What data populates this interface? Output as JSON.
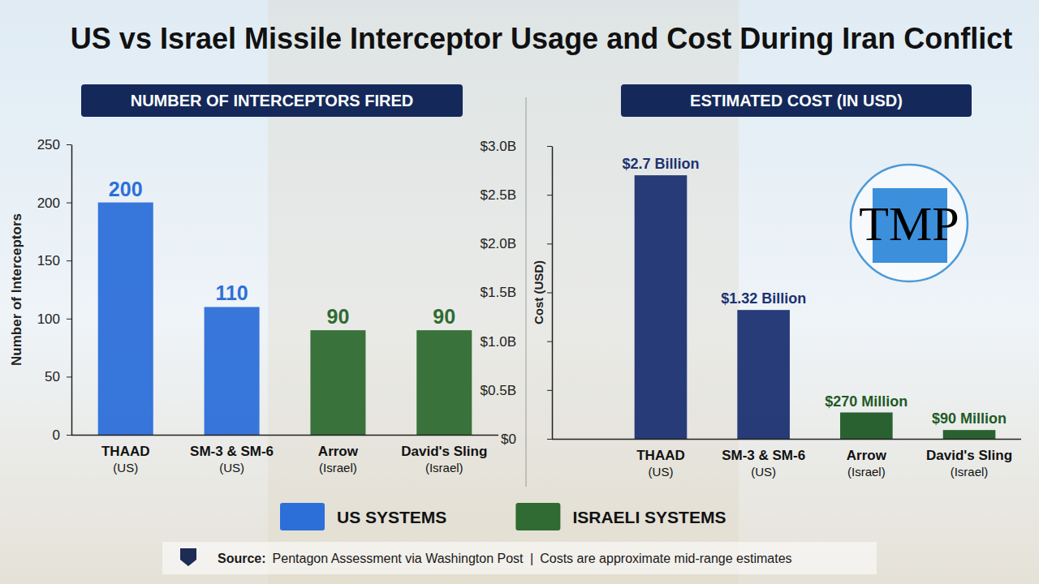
{
  "header": {
    "title": "US vs Israel Missile Interceptor Usage and Cost During Iran Conflict"
  },
  "chart_data": [
    {
      "type": "bar",
      "title": "NUMBER OF INTERCEPTORS FIRED",
      "y_label": "Number of Interceptors",
      "categories": [
        "THAAD (US)",
        "SM-3 & SM-6 (US)",
        "Arrow (Israel)",
        "David's Sling (Israel)"
      ],
      "series": [
        {
          "name": "US SYSTEMS",
          "color": "#2d6fd9",
          "values": [
            200,
            110,
            null,
            null
          ]
        },
        {
          "name": "ISRAELI SYSTEMS",
          "color": "#2f6b32",
          "values": [
            null,
            null,
            90,
            90
          ]
        }
      ],
      "ylim": [
        0,
        250
      ],
      "yticks": [
        0,
        50,
        100,
        150,
        200,
        250
      ],
      "grid": false,
      "data_labels": true,
      "legend": "bottom"
    },
    {
      "type": "bar",
      "title": "ESTIMATED COST (IN USD)",
      "y_label": "Cost (USD)",
      "categories": [
        "THAAD (US)",
        "SM-3 & SM-6 (US)",
        "Arrow (Israel)",
        "David's Sling (Israel)"
      ],
      "values": [
        2700000000,
        1320000000,
        270000000,
        90000000
      ],
      "value_labels": [
        "$2.7 Billion",
        "$1.32 Billion",
        "$270 Million",
        "$90 Million"
      ],
      "colors": [
        "#1c3272",
        "#1c3272",
        "#1f5a26",
        "#1f5a26"
      ],
      "ylim": [
        0,
        3000000000
      ],
      "yticks": [
        {
          "value": 0,
          "label": "$0"
        },
        {
          "value": 500000000,
          "label": "$0.5B"
        },
        {
          "value": 1000000000,
          "label": "$1.0B"
        },
        {
          "value": 1500000000,
          "label": "$1.5B"
        },
        {
          "value": 2000000000,
          "label": "$2.0B"
        },
        {
          "value": 2500000000,
          "label": "$2.5B"
        },
        {
          "value": 3000000000,
          "label": "$3.0B"
        }
      ],
      "grid": false,
      "data_labels": true
    }
  ],
  "logo": {
    "text": "TMP"
  },
  "footer": {
    "source_label": "Source:",
    "source": "Pentagon Assessment via Washington Post",
    "separator": "|",
    "note": "Costs are approximate mid-range estimates"
  }
}
